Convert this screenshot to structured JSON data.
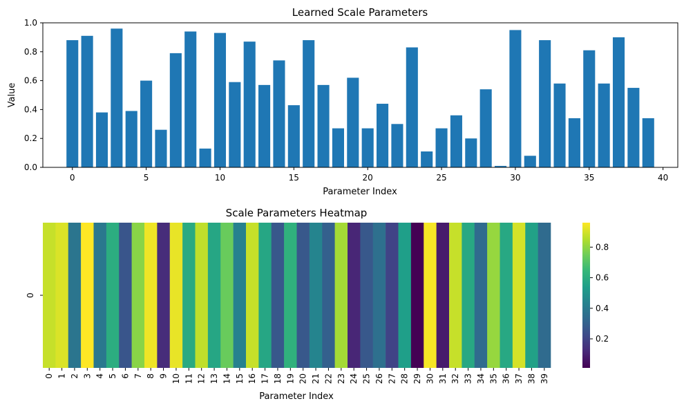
{
  "chart_data": [
    {
      "type": "bar",
      "title": "Learned Scale Parameters",
      "xlabel": "Parameter Index",
      "ylabel": "Value",
      "color": "#1f77b4",
      "xlim": [
        -2,
        41
      ],
      "ylim": [
        0,
        1.0
      ],
      "xticks": [
        "0",
        "5",
        "10",
        "15",
        "20",
        "25",
        "30",
        "35",
        "40"
      ],
      "yticks": [
        "0.0",
        "0.2",
        "0.4",
        "0.6",
        "0.8",
        "1.0"
      ],
      "categories": [
        0,
        1,
        2,
        3,
        4,
        5,
        6,
        7,
        8,
        9,
        10,
        11,
        12,
        13,
        14,
        15,
        16,
        17,
        18,
        19,
        20,
        21,
        22,
        23,
        24,
        25,
        26,
        27,
        28,
        29,
        30,
        31,
        32,
        33,
        34,
        35,
        36,
        37,
        38,
        39
      ],
      "values": [
        0.88,
        0.91,
        0.38,
        0.96,
        0.39,
        0.6,
        0.26,
        0.79,
        0.94,
        0.13,
        0.93,
        0.59,
        0.87,
        0.57,
        0.74,
        0.43,
        0.88,
        0.57,
        0.27,
        0.62,
        0.27,
        0.44,
        0.3,
        0.83,
        0.11,
        0.27,
        0.36,
        0.2,
        0.54,
        0.01,
        0.95,
        0.08,
        0.88,
        0.58,
        0.34,
        0.81,
        0.58,
        0.9,
        0.55,
        0.34
      ]
    },
    {
      "type": "heatmap",
      "title": "Scale Parameters Heatmap",
      "xlabel": "Parameter Index",
      "row_labels": [
        "0"
      ],
      "xticks": [
        "0",
        "1",
        "2",
        "3",
        "4",
        "5",
        "6",
        "7",
        "8",
        "9",
        "10",
        "11",
        "12",
        "13",
        "14",
        "15",
        "16",
        "17",
        "18",
        "19",
        "20",
        "21",
        "22",
        "23",
        "24",
        "25",
        "26",
        "27",
        "28",
        "29",
        "30",
        "31",
        "32",
        "33",
        "34",
        "35",
        "36",
        "37",
        "38",
        "39"
      ],
      "colormap": "viridis",
      "colorbar_ticks": [
        "0.2",
        "0.4",
        "0.6",
        "0.8"
      ],
      "vmin": 0.01,
      "vmax": 0.96
    }
  ]
}
